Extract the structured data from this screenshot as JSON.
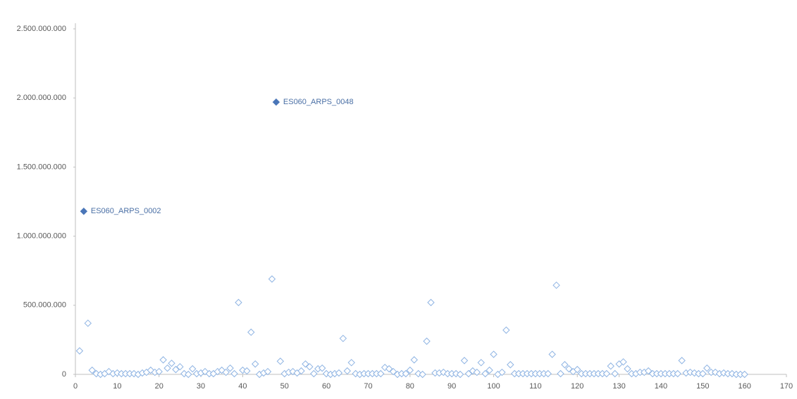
{
  "chart_data": {
    "type": "scatter",
    "xlim": [
      0,
      170
    ],
    "xticks": [
      0,
      10,
      20,
      30,
      40,
      50,
      60,
      70,
      80,
      90,
      100,
      110,
      120,
      130,
      140,
      150,
      160,
      170
    ],
    "ylim": [
      0,
      2500000000
    ],
    "yticks": [
      0,
      {
        "value": 500000000,
        "label": "500.000.000"
      },
      {
        "value": 1000000000,
        "label": "1.000.000.000"
      },
      {
        "value": 1500000000,
        "label": "1.500.000.000"
      },
      {
        "value": 2000000000,
        "label": "2.000.000.000"
      },
      {
        "value": 2500000000,
        "label": "2.500.000.000"
      }
    ],
    "grid": false,
    "series": [
      {
        "color": "#8fb4e3",
        "marker": "diamond-open",
        "x": [
          1,
          3,
          4,
          5,
          6,
          7,
          8,
          9,
          10,
          11,
          12,
          13,
          14,
          15,
          16,
          17,
          18,
          19,
          20,
          21,
          22,
          23,
          24,
          25,
          26,
          27,
          28,
          29,
          30,
          31,
          32,
          33,
          34,
          35,
          36,
          37,
          38,
          39,
          40,
          41,
          42,
          43,
          44,
          45,
          46,
          47,
          49,
          50,
          51,
          52,
          53,
          54,
          55,
          56,
          57,
          58,
          59,
          60,
          61,
          62,
          63,
          64,
          65,
          66,
          67,
          68,
          69,
          70,
          71,
          72,
          73,
          74,
          75,
          76,
          77,
          78,
          79,
          80,
          81,
          82,
          83,
          84,
          85,
          86,
          87,
          88,
          89,
          90,
          91,
          92,
          93,
          94,
          95,
          96,
          97,
          98,
          99,
          100,
          101,
          102,
          103,
          104,
          105,
          106,
          107,
          108,
          109,
          110,
          111,
          112,
          113,
          114,
          115,
          116,
          117,
          118,
          119,
          120,
          121,
          122,
          123,
          124,
          125,
          126,
          127,
          128,
          129,
          130,
          131,
          132,
          133,
          134,
          135,
          136,
          137,
          138,
          139,
          140,
          141,
          142,
          143,
          144,
          145,
          146,
          147,
          148,
          149,
          150,
          151,
          152,
          153,
          154,
          155,
          156,
          157,
          158,
          159,
          160
        ],
        "values": [
          170000000,
          370000000,
          30000000,
          5000000,
          0,
          5000000,
          20000000,
          5000000,
          10000000,
          5000000,
          5000000,
          5000000,
          5000000,
          0,
          10000000,
          15000000,
          30000000,
          15000000,
          20000000,
          105000000,
          45000000,
          80000000,
          35000000,
          55000000,
          5000000,
          0,
          40000000,
          5000000,
          10000000,
          20000000,
          5000000,
          5000000,
          20000000,
          30000000,
          15000000,
          45000000,
          5000000,
          520000000,
          30000000,
          25000000,
          305000000,
          75000000,
          0,
          10000000,
          20000000,
          690000000,
          95000000,
          5000000,
          15000000,
          20000000,
          10000000,
          25000000,
          75000000,
          55000000,
          5000000,
          40000000,
          45000000,
          5000000,
          0,
          5000000,
          10000000,
          260000000,
          25000000,
          85000000,
          5000000,
          0,
          5000000,
          5000000,
          5000000,
          5000000,
          5000000,
          50000000,
          40000000,
          20000000,
          0,
          5000000,
          5000000,
          30000000,
          105000000,
          5000000,
          0,
          240000000,
          520000000,
          10000000,
          10000000,
          15000000,
          5000000,
          5000000,
          5000000,
          0,
          100000000,
          5000000,
          25000000,
          15000000,
          85000000,
          5000000,
          30000000,
          145000000,
          0,
          15000000,
          320000000,
          70000000,
          5000000,
          5000000,
          5000000,
          5000000,
          5000000,
          5000000,
          5000000,
          5000000,
          5000000,
          145000000,
          645000000,
          5000000,
          70000000,
          40000000,
          20000000,
          35000000,
          5000000,
          5000000,
          5000000,
          5000000,
          5000000,
          5000000,
          5000000,
          60000000,
          5000000,
          75000000,
          90000000,
          40000000,
          5000000,
          5000000,
          15000000,
          15000000,
          25000000,
          5000000,
          5000000,
          5000000,
          5000000,
          5000000,
          5000000,
          5000000,
          100000000,
          10000000,
          15000000,
          10000000,
          5000000,
          5000000,
          45000000,
          15000000,
          15000000,
          5000000,
          10000000,
          5000000,
          5000000,
          0,
          0,
          0
        ]
      },
      {
        "color": "#4a76b8",
        "marker": "diamond",
        "x": [
          2,
          48
        ],
        "values": [
          1180000000,
          1970000000
        ],
        "labels": [
          "ES060_ARPS_0002",
          "ES060_ARPS_0048"
        ]
      }
    ]
  }
}
